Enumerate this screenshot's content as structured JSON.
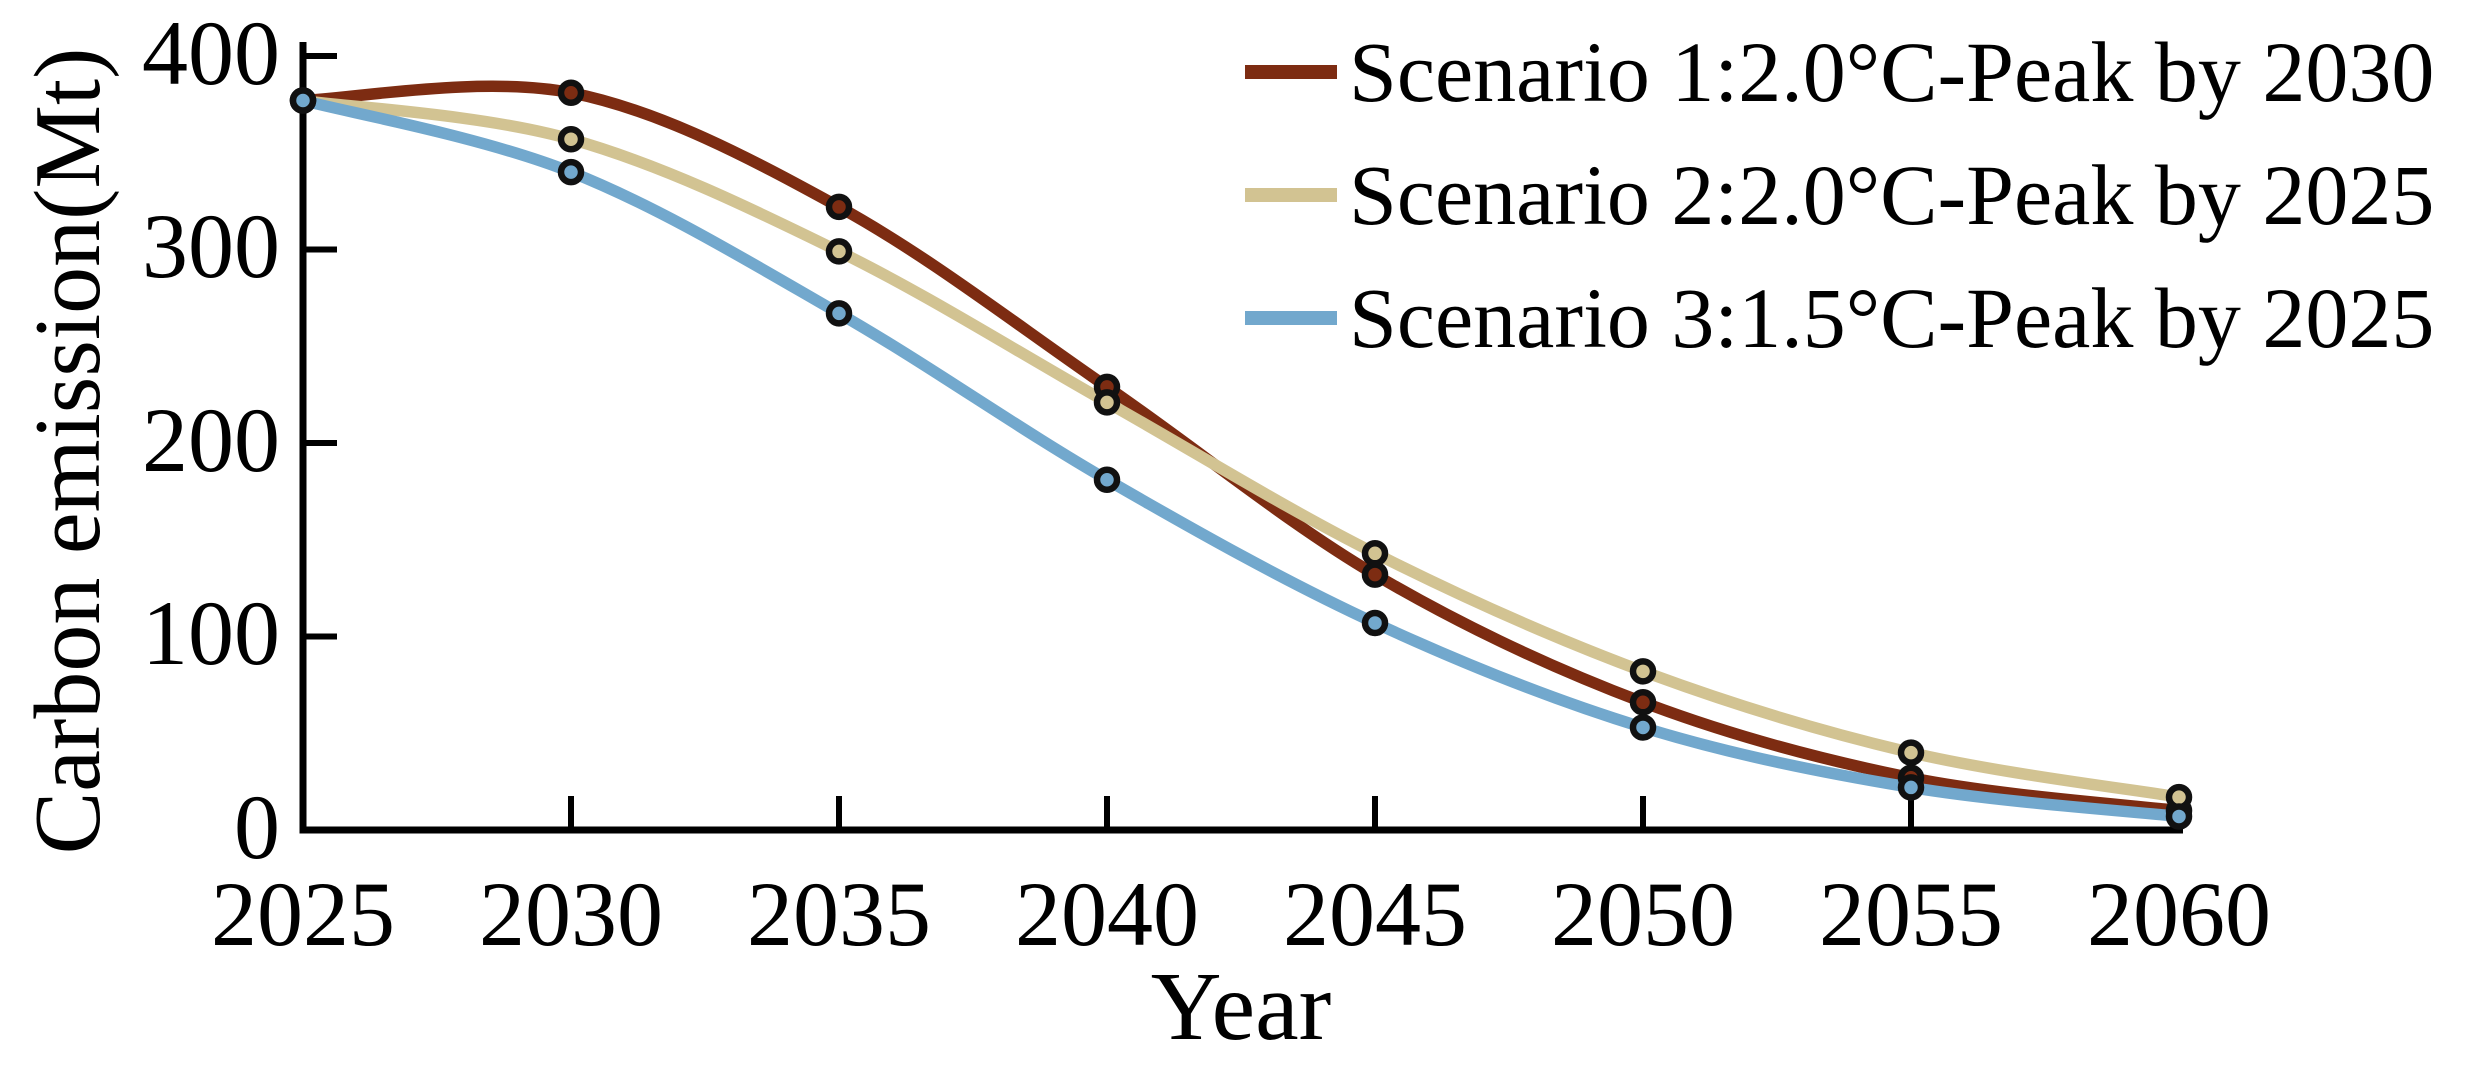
{
  "figure": {
    "background": "#ffffff",
    "text_color": "#000000"
  },
  "chart_data": {
    "type": "line",
    "title": "",
    "xlabel": "Year",
    "ylabel": "Carbon emission(Mt)",
    "x": [
      2025,
      2030,
      2035,
      2040,
      2045,
      2050,
      2055,
      2060
    ],
    "x_tick_labels": [
      "2025",
      "2030",
      "2035",
      "2040",
      "2045",
      "2050",
      "2055",
      "2060"
    ],
    "y_ticks": [
      0,
      100,
      200,
      300,
      400
    ],
    "y_tick_labels": [
      "0",
      "100",
      "200",
      "300",
      "400"
    ],
    "xlim": [
      2025,
      2060
    ],
    "ylim": [
      0,
      400
    ],
    "grid": false,
    "legend_position": "top-right",
    "axis_color": "#000000",
    "marker": "circle",
    "marker_outline_color": "#111111",
    "series": [
      {
        "name": "Scenario 1:2.0°C-Peak by 2030",
        "color": "#7d2c12",
        "values": [
          377,
          381,
          322,
          229,
          132,
          66,
          27,
          10
        ]
      },
      {
        "name": "Scenario 2:2.0°C-Peak by 2025",
        "color": "#d2c392",
        "values": [
          377,
          357,
          299,
          221,
          143,
          82,
          40,
          17
        ]
      },
      {
        "name": "Scenario 3:1.5°C-Peak by 2025",
        "color": "#72a8cd",
        "values": [
          377,
          340,
          267,
          181,
          107,
          53,
          22,
          7
        ]
      }
    ]
  }
}
